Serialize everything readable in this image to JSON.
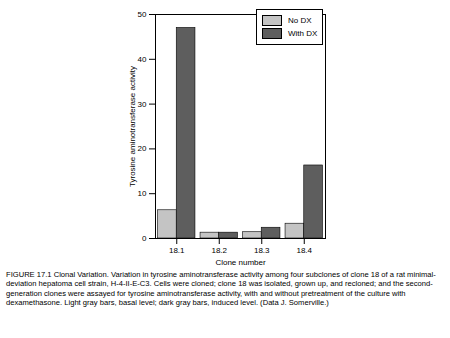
{
  "chart_data": {
    "type": "bar",
    "categories": [
      "18.1",
      "18.2",
      "18.3",
      "18.4"
    ],
    "series": [
      {
        "name": "No DX",
        "color": "#c4c4c4",
        "values": [
          6.3,
          1.3,
          1.4,
          3.3
        ]
      },
      {
        "name": "With DX",
        "color": "#5e5e5e",
        "values": [
          47,
          1.3,
          2.4,
          16.3
        ]
      }
    ],
    "x_label": "Clone number",
    "y_label": "Tyrosine aminotransferase activity",
    "ylim": [
      0,
      50
    ],
    "yticks": [
      0,
      10,
      20,
      30,
      40,
      50
    ],
    "legend": "top-right",
    "caption": "FIGURE 17.1 Clonal Variation. Variation in tyrosine aminotransferase activity among four subclones of clone 18 of a rat minimal-deviation hepatoma cell strain, H-4-II-E-C3. Cells were cloned; clone 18 was isolated, grown up, and recloned; and the second-generation clones were assayed for tyrosine aminotransferase activity, with and without pretreatment of the culture with dexamethasone. Light gray bars, basal level; dark gray bars, induced level. (Data J. Somerville.)"
  }
}
